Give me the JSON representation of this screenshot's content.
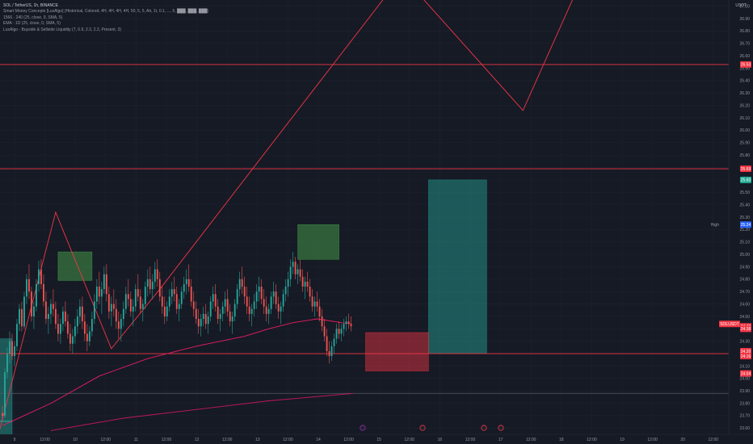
{
  "header": {
    "symbol_line": "SOL / TetherUS, 1h, BINANCE",
    "indicators": [
      "Smart Money Concepts [LuxAlgo] (Historical, Colored, 4H, 4H, 4H, 4H, 50, 5, 5, Atr, 1t, 0.1, ..., 5, ███, ███, ███)",
      "1566 · 240 (25, close, 0, SMA, 5)",
      "EMA · 1D (25, close, 0, SMA, 5)",
      "LuxAlgo - Buyside & Sellside Liquidity (7, 6.9, 2.3, 2.3, Present, 3)"
    ]
  },
  "price_axis": {
    "unit": "USDT",
    "ticks": [
      "27.00",
      "26.90",
      "26.80",
      "26.70",
      "26.60",
      "26.50",
      "26.40",
      "26.30",
      "26.20",
      "26.10",
      "26.00",
      "25.90",
      "25.80",
      "25.70",
      "25.60",
      "25.50",
      "25.40",
      "25.30",
      "25.20",
      "25.10",
      "25.00",
      "24.90",
      "24.80",
      "24.70",
      "24.60",
      "24.50",
      "24.40",
      "24.30",
      "24.20",
      "24.10",
      "24.00",
      "23.90",
      "23.80",
      "23.70",
      "23.60"
    ],
    "tags": [
      {
        "label": "26.53",
        "value": 26.53,
        "color": "#f23645"
      },
      {
        "label": "25.69",
        "value": 25.69,
        "color": "#f23645"
      },
      {
        "label": "25.60",
        "value": 25.6,
        "color": "#22ab94"
      },
      {
        "label": "High",
        "value": 25.24,
        "color": "#2962ff",
        "prefix": "High"
      },
      {
        "label": "25.24",
        "value": 25.24,
        "color": "#2962ff"
      },
      {
        "label": "SOLUSDT",
        "value": 24.44,
        "color": "#f23645"
      },
      {
        "label": "24.42",
        "value": 24.42,
        "color": "#f23645"
      },
      {
        "label": "24.38",
        "value": 24.4,
        "color": "#f23645"
      },
      {
        "label": "24.20",
        "value": 24.22,
        "color": "#f23645"
      },
      {
        "label": "24.16",
        "value": 24.18,
        "color": "#f23645"
      },
      {
        "label": "24.04",
        "value": 24.04,
        "color": "#f23645"
      }
    ]
  },
  "time_axis": {
    "ticks": [
      "9",
      "12:00",
      "10",
      "12:00",
      "11",
      "12:00",
      "12",
      "12:00",
      "13",
      "12:00",
      "14",
      "12:00",
      "15",
      "12:00",
      "16",
      "12:00",
      "17",
      "12:00",
      "18",
      "12:00",
      "19",
      "12:00",
      "20",
      "12:00"
    ]
  },
  "chart_data": {
    "type": "candlestick",
    "symbol": "SOL / TetherUS",
    "interval": "1h",
    "exchange": "BINANCE",
    "ylim": [
      23.55,
      27.05
    ],
    "x_unit": "hours since 9 00:00",
    "xlim": [
      -1,
      300
    ],
    "candles": [
      [
        0,
        23.72,
        23.78,
        23.66,
        23.7
      ],
      [
        1,
        23.7,
        24.08,
        23.68,
        24.05
      ],
      [
        2,
        24.05,
        24.25,
        24.0,
        24.2
      ],
      [
        3,
        24.2,
        24.38,
        24.12,
        24.3
      ],
      [
        4,
        24.3,
        24.36,
        24.15,
        24.18
      ],
      [
        5,
        24.18,
        24.3,
        24.1,
        24.26
      ],
      [
        6,
        24.26,
        24.48,
        24.22,
        24.44
      ],
      [
        7,
        24.44,
        24.6,
        24.38,
        24.56
      ],
      [
        8,
        24.56,
        24.62,
        24.38,
        24.42
      ],
      [
        9,
        24.42,
        24.7,
        24.4,
        24.66
      ],
      [
        10,
        24.66,
        24.84,
        24.6,
        24.8
      ],
      [
        11,
        24.8,
        24.92,
        24.64,
        24.7
      ],
      [
        12,
        24.7,
        24.74,
        24.46,
        24.5
      ],
      [
        13,
        24.5,
        24.62,
        24.4,
        24.58
      ],
      [
        14,
        24.58,
        24.8,
        24.54,
        24.76
      ],
      [
        15,
        24.76,
        24.95,
        24.7,
        24.88
      ],
      [
        16,
        24.88,
        24.96,
        24.72,
        24.76
      ],
      [
        17,
        24.76,
        24.84,
        24.58,
        24.62
      ],
      [
        18,
        24.62,
        24.7,
        24.44,
        24.48
      ],
      [
        19,
        24.48,
        24.58,
        24.36,
        24.52
      ],
      [
        20,
        24.52,
        24.64,
        24.44,
        24.6
      ],
      [
        21,
        24.6,
        24.72,
        24.5,
        24.56
      ],
      [
        22,
        24.56,
        24.62,
        24.4,
        24.44
      ],
      [
        23,
        24.44,
        24.52,
        24.3,
        24.36
      ],
      [
        24,
        24.36,
        24.48,
        24.28,
        24.44
      ],
      [
        25,
        24.44,
        24.58,
        24.38,
        24.54
      ],
      [
        26,
        24.54,
        24.62,
        24.42,
        24.46
      ],
      [
        27,
        24.46,
        24.52,
        24.32,
        24.36
      ],
      [
        28,
        24.36,
        24.44,
        24.22,
        24.28
      ],
      [
        29,
        24.28,
        24.4,
        24.2,
        24.34
      ],
      [
        30,
        24.34,
        24.48,
        24.28,
        24.42
      ],
      [
        31,
        24.42,
        24.56,
        24.36,
        24.5
      ],
      [
        32,
        24.5,
        24.64,
        24.44,
        24.58
      ],
      [
        33,
        24.58,
        24.66,
        24.4,
        24.46
      ],
      [
        34,
        24.46,
        24.52,
        24.3,
        24.36
      ],
      [
        35,
        24.36,
        24.44,
        24.22,
        24.3
      ],
      [
        36,
        24.3,
        24.42,
        24.26,
        24.38
      ],
      [
        37,
        24.38,
        24.54,
        24.34,
        24.48
      ],
      [
        38,
        24.48,
        24.68,
        24.44,
        24.62
      ],
      [
        39,
        24.62,
        24.8,
        24.56,
        24.74
      ],
      [
        40,
        24.74,
        24.86,
        24.6,
        24.66
      ],
      [
        41,
        24.66,
        24.78,
        24.52,
        24.72
      ],
      [
        42,
        24.72,
        24.9,
        24.68,
        24.84
      ],
      [
        43,
        24.84,
        24.92,
        24.62,
        24.68
      ],
      [
        44,
        24.68,
        24.74,
        24.48,
        24.54
      ],
      [
        45,
        24.54,
        24.66,
        24.42,
        24.6
      ],
      [
        46,
        24.6,
        24.72,
        24.5,
        24.56
      ],
      [
        47,
        24.56,
        24.64,
        24.4,
        24.46
      ],
      [
        48,
        24.46,
        24.54,
        24.32,
        24.4
      ],
      [
        49,
        24.4,
        24.52,
        24.3,
        24.48
      ],
      [
        50,
        24.48,
        24.62,
        24.42,
        24.56
      ],
      [
        51,
        24.56,
        24.74,
        24.52,
        24.68
      ],
      [
        52,
        24.68,
        24.8,
        24.58,
        24.64
      ],
      [
        53,
        24.64,
        24.7,
        24.5,
        24.54
      ],
      [
        54,
        24.54,
        24.64,
        24.42,
        24.58
      ],
      [
        55,
        24.58,
        24.76,
        24.54,
        24.72
      ],
      [
        56,
        24.72,
        24.84,
        24.62,
        24.66
      ],
      [
        57,
        24.66,
        24.72,
        24.52,
        24.56
      ],
      [
        58,
        24.56,
        24.64,
        24.46,
        24.6
      ],
      [
        59,
        24.6,
        24.78,
        24.56,
        24.74
      ],
      [
        60,
        24.74,
        24.88,
        24.66,
        24.8
      ],
      [
        61,
        24.8,
        24.9,
        24.68,
        24.72
      ],
      [
        62,
        24.72,
        24.84,
        24.64,
        24.78
      ],
      [
        63,
        24.78,
        24.94,
        24.72,
        24.88
      ],
      [
        64,
        24.88,
        24.96,
        24.74,
        24.8
      ],
      [
        65,
        24.8,
        24.86,
        24.62,
        24.66
      ],
      [
        66,
        24.66,
        24.74,
        24.52,
        24.58
      ],
      [
        67,
        24.58,
        24.66,
        24.44,
        24.5
      ],
      [
        68,
        24.5,
        24.62,
        24.46,
        24.58
      ],
      [
        69,
        24.58,
        24.72,
        24.54,
        24.66
      ],
      [
        70,
        24.66,
        24.78,
        24.6,
        24.72
      ],
      [
        71,
        24.72,
        24.82,
        24.62,
        24.68
      ],
      [
        72,
        24.68,
        24.74,
        24.52,
        24.56
      ],
      [
        73,
        24.56,
        24.64,
        24.46,
        24.6
      ],
      [
        74,
        24.6,
        24.74,
        24.56,
        24.7
      ],
      [
        75,
        24.7,
        24.82,
        24.64,
        24.76
      ],
      [
        76,
        24.76,
        24.88,
        24.68,
        24.8
      ],
      [
        77,
        24.8,
        24.92,
        24.7,
        24.74
      ],
      [
        78,
        24.74,
        24.8,
        24.58,
        24.62
      ],
      [
        79,
        24.62,
        24.7,
        24.5,
        24.56
      ],
      [
        80,
        24.56,
        24.62,
        24.44,
        24.48
      ],
      [
        81,
        24.48,
        24.56,
        24.36,
        24.42
      ],
      [
        82,
        24.42,
        24.52,
        24.34,
        24.48
      ],
      [
        83,
        24.48,
        24.58,
        24.42,
        24.52
      ],
      [
        84,
        24.52,
        24.6,
        24.4,
        24.44
      ],
      [
        85,
        24.44,
        24.54,
        24.36,
        24.5
      ],
      [
        86,
        24.5,
        24.66,
        24.46,
        24.62
      ],
      [
        87,
        24.62,
        24.74,
        24.56,
        24.68
      ],
      [
        88,
        24.68,
        24.76,
        24.54,
        24.58
      ],
      [
        89,
        24.58,
        24.64,
        24.44,
        24.48
      ],
      [
        90,
        24.48,
        24.56,
        24.38,
        24.52
      ],
      [
        91,
        24.52,
        24.62,
        24.46,
        24.58
      ],
      [
        92,
        24.58,
        24.7,
        24.52,
        24.64
      ],
      [
        93,
        24.64,
        24.72,
        24.5,
        24.54
      ],
      [
        94,
        24.54,
        24.6,
        24.42,
        24.46
      ],
      [
        95,
        24.46,
        24.54,
        24.36,
        24.5
      ],
      [
        96,
        24.5,
        24.64,
        24.46,
        24.6
      ],
      [
        97,
        24.6,
        24.76,
        24.56,
        24.72
      ],
      [
        98,
        24.72,
        24.86,
        24.66,
        24.8
      ],
      [
        99,
        24.8,
        24.9,
        24.68,
        24.74
      ],
      [
        100,
        24.74,
        24.82,
        24.6,
        24.66
      ],
      [
        101,
        24.66,
        24.74,
        24.52,
        24.58
      ],
      [
        102,
        24.58,
        24.66,
        24.46,
        24.52
      ],
      [
        103,
        24.52,
        24.6,
        24.42,
        24.56
      ],
      [
        104,
        24.56,
        24.68,
        24.5,
        24.62
      ],
      [
        105,
        24.62,
        24.76,
        24.56,
        24.7
      ],
      [
        106,
        24.7,
        24.82,
        24.62,
        24.74
      ],
      [
        107,
        24.74,
        24.8,
        24.6,
        24.64
      ],
      [
        108,
        24.64,
        24.72,
        24.52,
        24.58
      ],
      [
        109,
        24.58,
        24.66,
        24.46,
        24.52
      ],
      [
        110,
        24.52,
        24.6,
        24.44,
        24.56
      ],
      [
        111,
        24.56,
        24.7,
        24.52,
        24.66
      ],
      [
        112,
        24.66,
        24.78,
        24.6,
        24.7
      ],
      [
        113,
        24.7,
        24.76,
        24.56,
        24.6
      ],
      [
        114,
        24.6,
        24.66,
        24.48,
        24.54
      ],
      [
        115,
        24.54,
        24.62,
        24.44,
        24.58
      ],
      [
        116,
        24.58,
        24.72,
        24.54,
        24.68
      ],
      [
        117,
        24.68,
        24.8,
        24.62,
        24.74
      ],
      [
        118,
        24.74,
        24.86,
        24.66,
        24.8
      ],
      [
        119,
        24.8,
        24.96,
        24.74,
        24.9
      ],
      [
        120,
        24.9,
        25.02,
        24.84,
        24.94
      ],
      [
        121,
        24.94,
        24.98,
        24.8,
        24.84
      ],
      [
        122,
        24.84,
        24.92,
        24.76,
        24.88
      ],
      [
        123,
        24.88,
        24.96,
        24.78,
        24.82
      ],
      [
        124,
        24.82,
        24.88,
        24.7,
        24.74
      ],
      [
        125,
        24.74,
        24.82,
        24.64,
        24.78
      ],
      [
        126,
        24.78,
        24.86,
        24.7,
        24.74
      ],
      [
        127,
        24.74,
        24.8,
        24.62,
        24.66
      ],
      [
        128,
        24.66,
        24.72,
        24.54,
        24.58
      ],
      [
        129,
        24.58,
        24.66,
        24.5,
        24.62
      ],
      [
        130,
        24.62,
        24.7,
        24.54,
        24.58
      ],
      [
        131,
        24.58,
        24.64,
        24.46,
        24.5
      ],
      [
        132,
        24.5,
        24.56,
        24.38,
        24.42
      ],
      [
        133,
        24.42,
        24.48,
        24.3,
        24.34
      ],
      [
        134,
        24.34,
        24.4,
        24.18,
        24.22
      ],
      [
        135,
        24.22,
        24.3,
        24.12,
        24.18
      ],
      [
        136,
        24.18,
        24.3,
        24.14,
        24.26
      ],
      [
        137,
        24.26,
        24.36,
        24.2,
        24.32
      ],
      [
        138,
        24.32,
        24.44,
        24.28,
        24.4
      ],
      [
        139,
        24.4,
        24.46,
        24.32,
        24.36
      ],
      [
        140,
        24.36,
        24.44,
        24.3,
        24.4
      ],
      [
        141,
        24.4,
        24.48,
        24.34,
        24.44
      ],
      [
        142,
        24.44,
        24.5,
        24.38,
        24.46
      ],
      [
        143,
        24.46,
        24.52,
        24.4,
        24.44
      ],
      [
        144,
        24.44,
        24.5,
        24.38,
        24.42
      ]
    ],
    "ema_fast": [
      [
        0,
        23.62
      ],
      [
        20,
        23.8
      ],
      [
        40,
        24.02
      ],
      [
        60,
        24.16
      ],
      [
        80,
        24.26
      ],
      [
        100,
        24.34
      ],
      [
        110,
        24.4
      ],
      [
        120,
        24.45
      ],
      [
        130,
        24.48
      ],
      [
        140,
        24.45
      ],
      [
        144,
        24.44
      ]
    ],
    "ema_slow": [
      [
        20,
        23.58
      ],
      [
        50,
        23.68
      ],
      [
        80,
        23.75
      ],
      [
        110,
        23.82
      ],
      [
        145,
        23.88
      ]
    ],
    "zigzag": [
      [
        -2,
        23.52
      ],
      [
        22,
        25.34
      ],
      [
        45,
        24.24
      ],
      [
        65,
        24.72
      ],
      [
        165,
        27.25
      ],
      [
        215,
        26.16
      ],
      [
        240,
        27.25
      ]
    ],
    "horizontal_levels": [
      {
        "value": 26.53,
        "color": "#f23645"
      },
      {
        "value": 25.69,
        "color": "#f23645"
      },
      {
        "value": 24.2,
        "color": "#f23645"
      },
      {
        "value": 23.88,
        "color": "#555a66"
      }
    ],
    "zones": [
      {
        "x0": -2,
        "x1": 4,
        "y0": 23.65,
        "y1": 24.32,
        "color": "#26a69a"
      },
      {
        "x0": -2,
        "x1": 4,
        "y0": 23.55,
        "y1": 23.66,
        "color": "#26a69a"
      },
      {
        "x0": 23,
        "x1": 37,
        "y0": 24.79,
        "y1": 25.02,
        "color": "#4caf50"
      },
      {
        "x0": 122,
        "x1": 139,
        "y0": 24.96,
        "y1": 25.24,
        "color": "#4caf50"
      },
      {
        "x0": 176,
        "x1": 200,
        "y0": 24.2,
        "y1": 25.6,
        "color": "#26a69a"
      },
      {
        "x0": 150,
        "x1": 176,
        "y0": 24.06,
        "y1": 24.37,
        "color": "#f23645"
      }
    ]
  }
}
